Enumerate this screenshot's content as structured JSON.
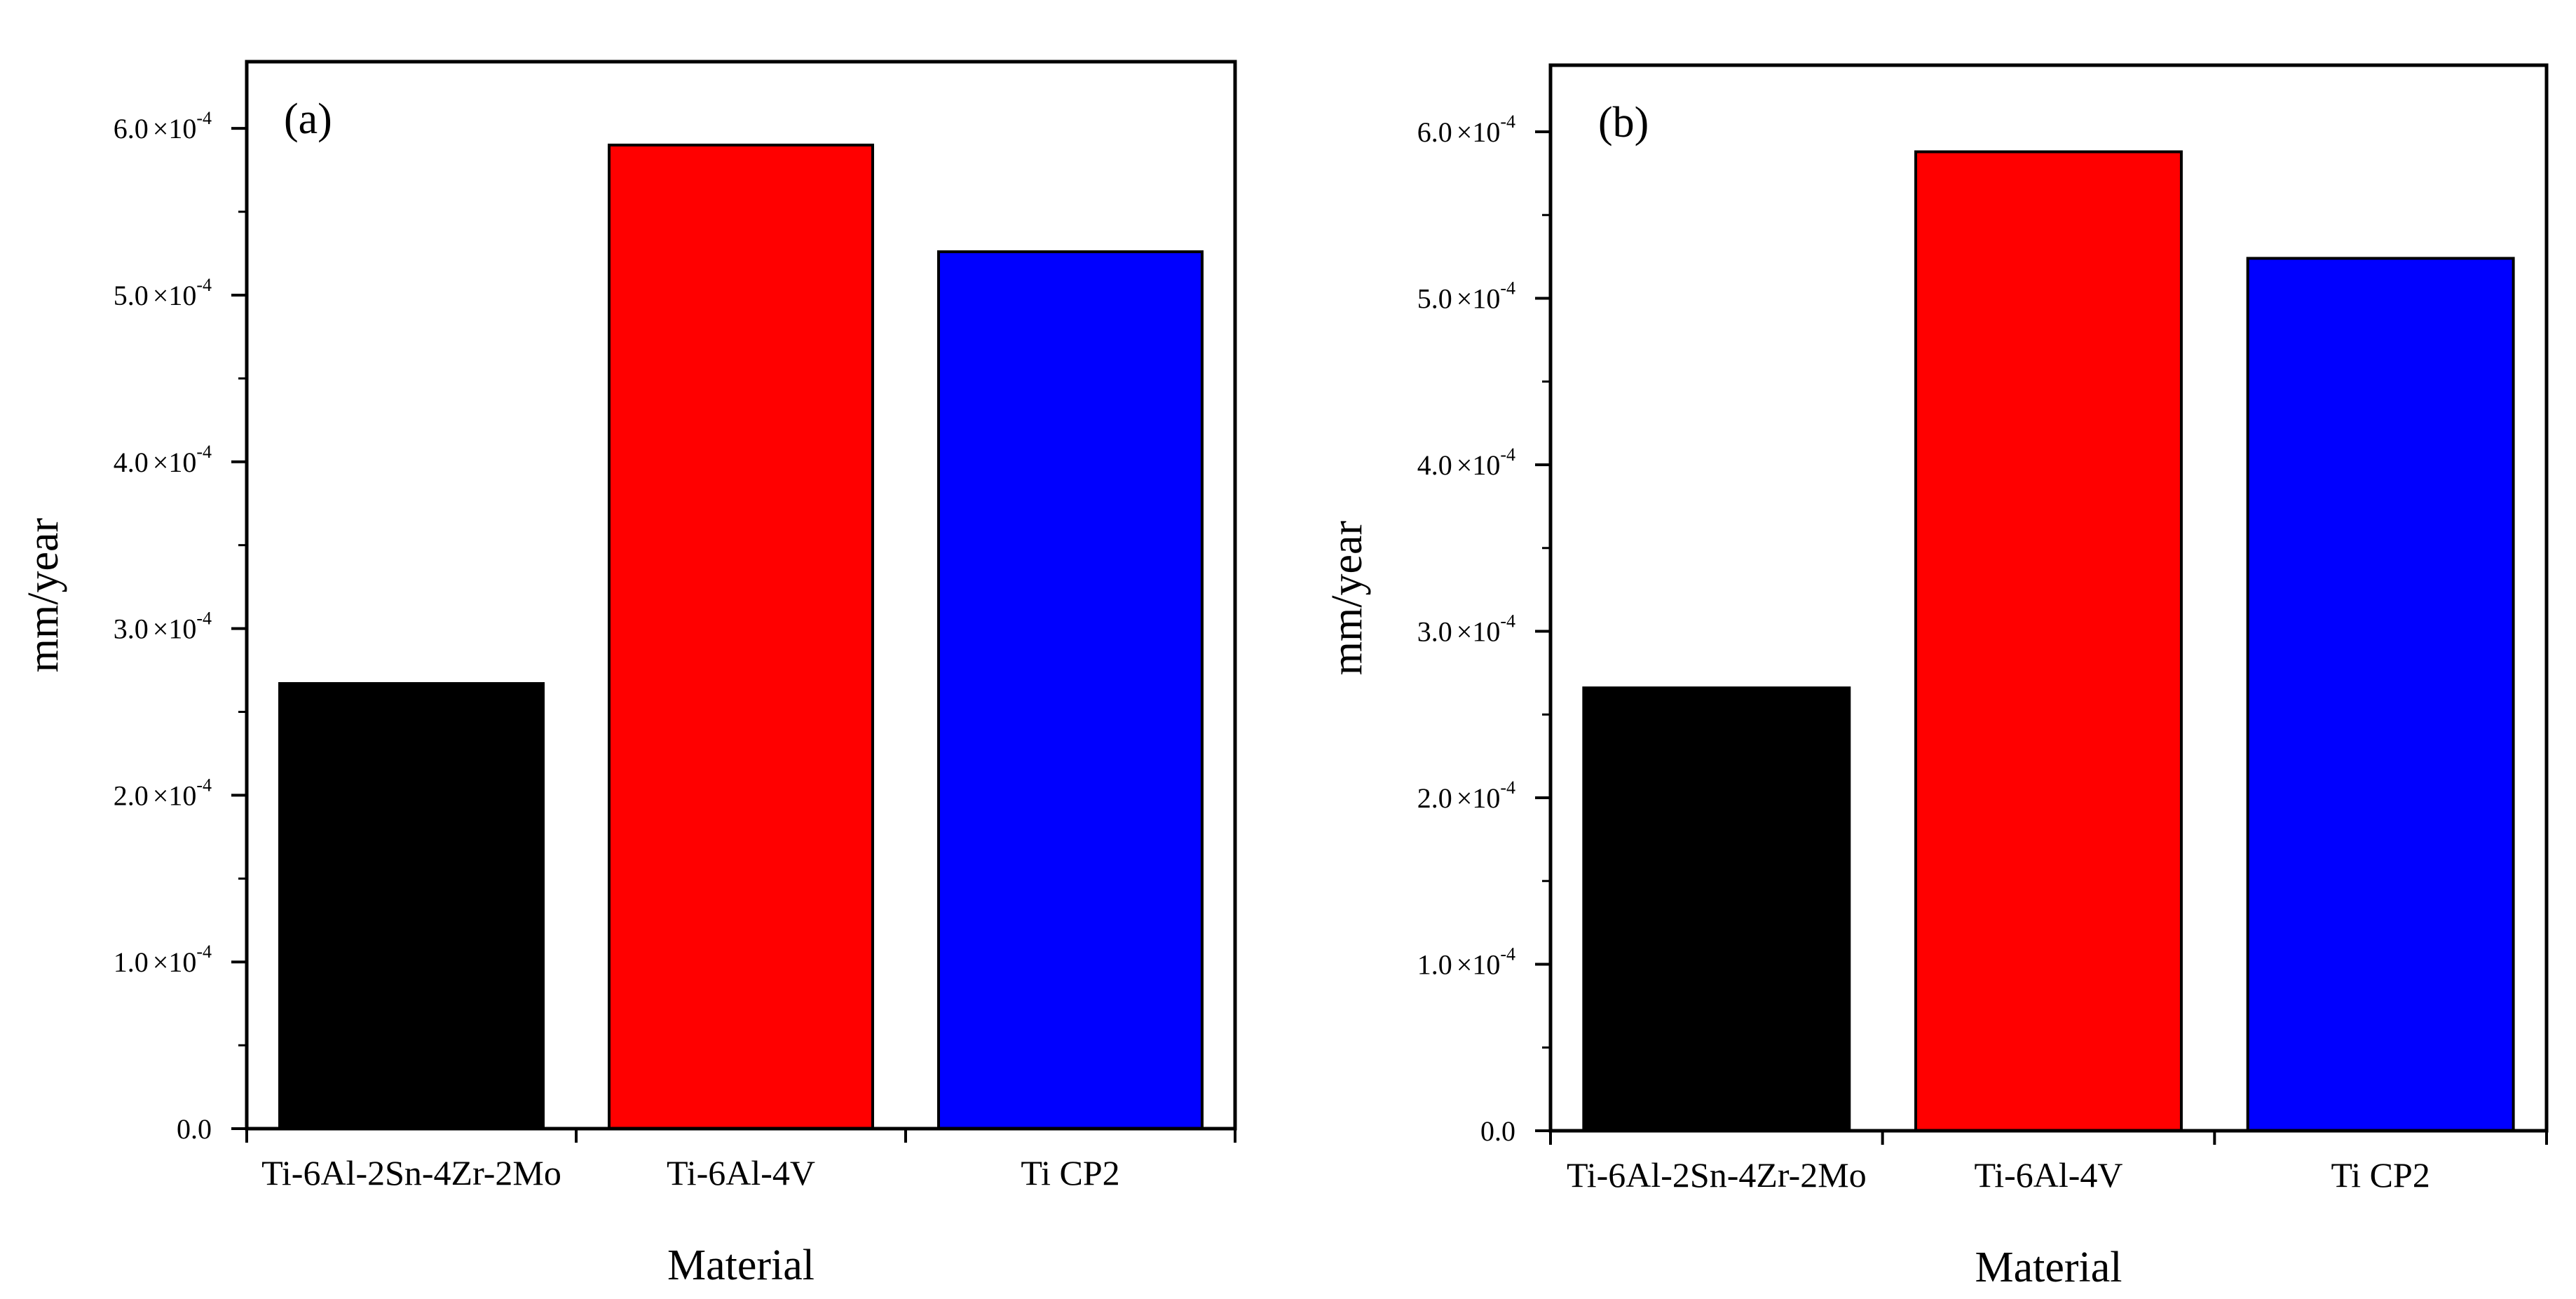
{
  "chart_data": [
    {
      "type": "bar",
      "panel_label": "(a)",
      "categories": [
        "Ti-6Al-2Sn-4Zr-2Mo",
        "Ti-6Al-4V",
        "Ti CP2"
      ],
      "values": [
        0.000267,
        0.00059,
        0.000526
      ],
      "colors": [
        "#000000",
        "#ff0000",
        "#0000ff"
      ],
      "xlabel": "Material",
      "ylabel": "mm/year",
      "ylim": [
        0,
        0.00064
      ],
      "yticks": [
        {
          "value": 0,
          "mantissa": "0.0",
          "exp": ""
        },
        {
          "value": 0.0001,
          "mantissa": "1.0",
          "exp": "-4"
        },
        {
          "value": 0.0002,
          "mantissa": "2.0",
          "exp": "-4"
        },
        {
          "value": 0.0003,
          "mantissa": "3.0",
          "exp": "-4"
        },
        {
          "value": 0.0004,
          "mantissa": "4.0",
          "exp": "-4"
        },
        {
          "value": 0.0005,
          "mantissa": "5.0",
          "exp": "-4"
        },
        {
          "value": 0.0006,
          "mantissa": "6.0",
          "exp": "-4"
        }
      ],
      "times_sign": "×10"
    },
    {
      "type": "bar",
      "panel_label": "(b)",
      "categories": [
        "Ti-6Al-2Sn-4Zr-2Mo",
        "Ti-6Al-4V",
        "Ti CP2"
      ],
      "values": [
        0.000266,
        0.000588,
        0.000524
      ],
      "colors": [
        "#000000",
        "#ff0000",
        "#0000ff"
      ],
      "xlabel": "Material",
      "ylabel": "mm/year",
      "ylim": [
        0,
        0.00064
      ],
      "yticks": [
        {
          "value": 0,
          "mantissa": "0.0",
          "exp": ""
        },
        {
          "value": 0.0001,
          "mantissa": "1.0",
          "exp": "-4"
        },
        {
          "value": 0.0002,
          "mantissa": "2.0",
          "exp": "-4"
        },
        {
          "value": 0.0003,
          "mantissa": "3.0",
          "exp": "-4"
        },
        {
          "value": 0.0004,
          "mantissa": "4.0",
          "exp": "-4"
        },
        {
          "value": 0.0005,
          "mantissa": "5.0",
          "exp": "-4"
        },
        {
          "value": 0.0006,
          "mantissa": "6.0",
          "exp": "-4"
        }
      ],
      "times_sign": "×10"
    }
  ]
}
